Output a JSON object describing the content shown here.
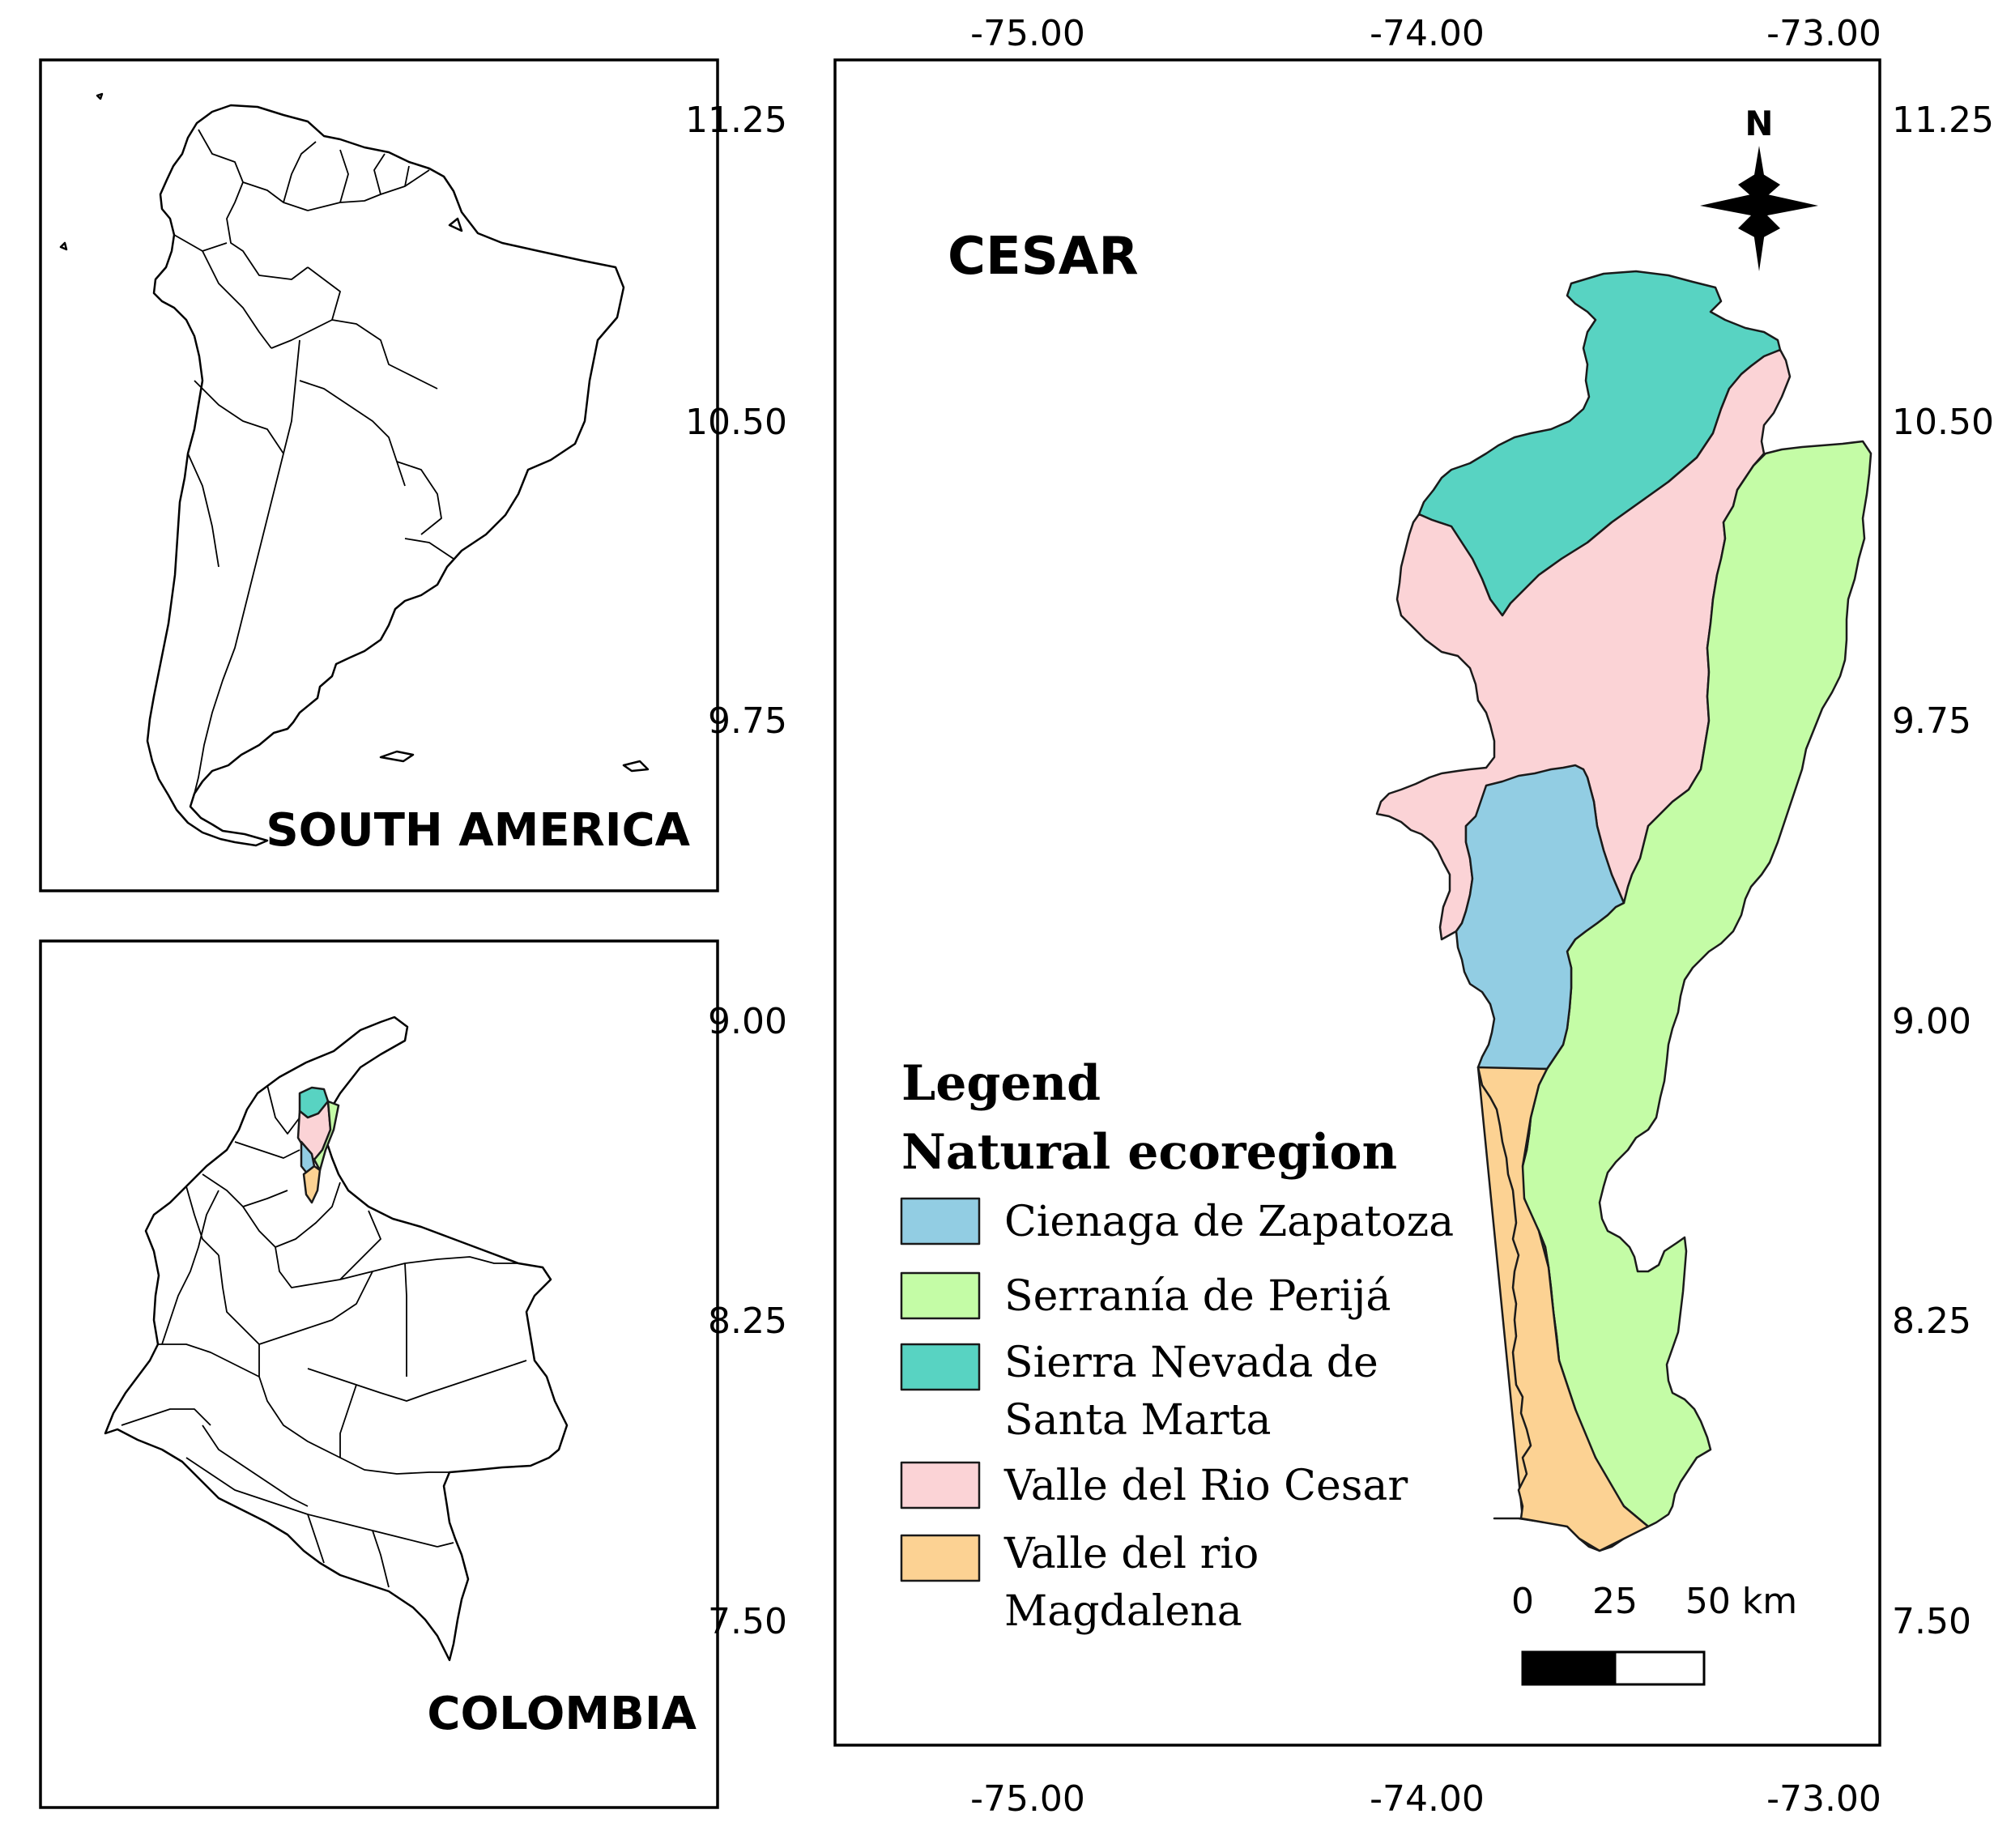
{
  "inset_south_america": {
    "label": "SOUTH AMERICA"
  },
  "inset_colombia": {
    "label": "COLOMBIA"
  },
  "main_map": {
    "title": "CESAR",
    "longitude_ticks": [
      "-75.00",
      "-74.00",
      "-73.00"
    ],
    "latitude_ticks": [
      "11.25",
      "10.50",
      "9.75",
      "9.00",
      "8.25",
      "7.50"
    ],
    "north_arrow": {
      "label": "N",
      "icon": "compass-rose-icon"
    },
    "scale_bar": {
      "labels": [
        "0",
        "25",
        "50 km"
      ]
    }
  },
  "legend": {
    "title": "Legend",
    "subtitle": "Natural ecoregion",
    "items": [
      {
        "label": "Cienaga de Zapatoza",
        "color": "#92cde3"
      },
      {
        "label": "Serranía de Perijá",
        "color": "#c4fca6"
      },
      {
        "label_lines": [
          "Sierra Nevada de",
          "Santa Marta"
        ],
        "color": "#58d3c2"
      },
      {
        "label": "Valle del Rio Cesar",
        "color": "#fbd3d6"
      },
      {
        "label_lines": [
          "Valle del rio",
          "Magdalena"
        ],
        "color": "#fcd293"
      }
    ]
  }
}
